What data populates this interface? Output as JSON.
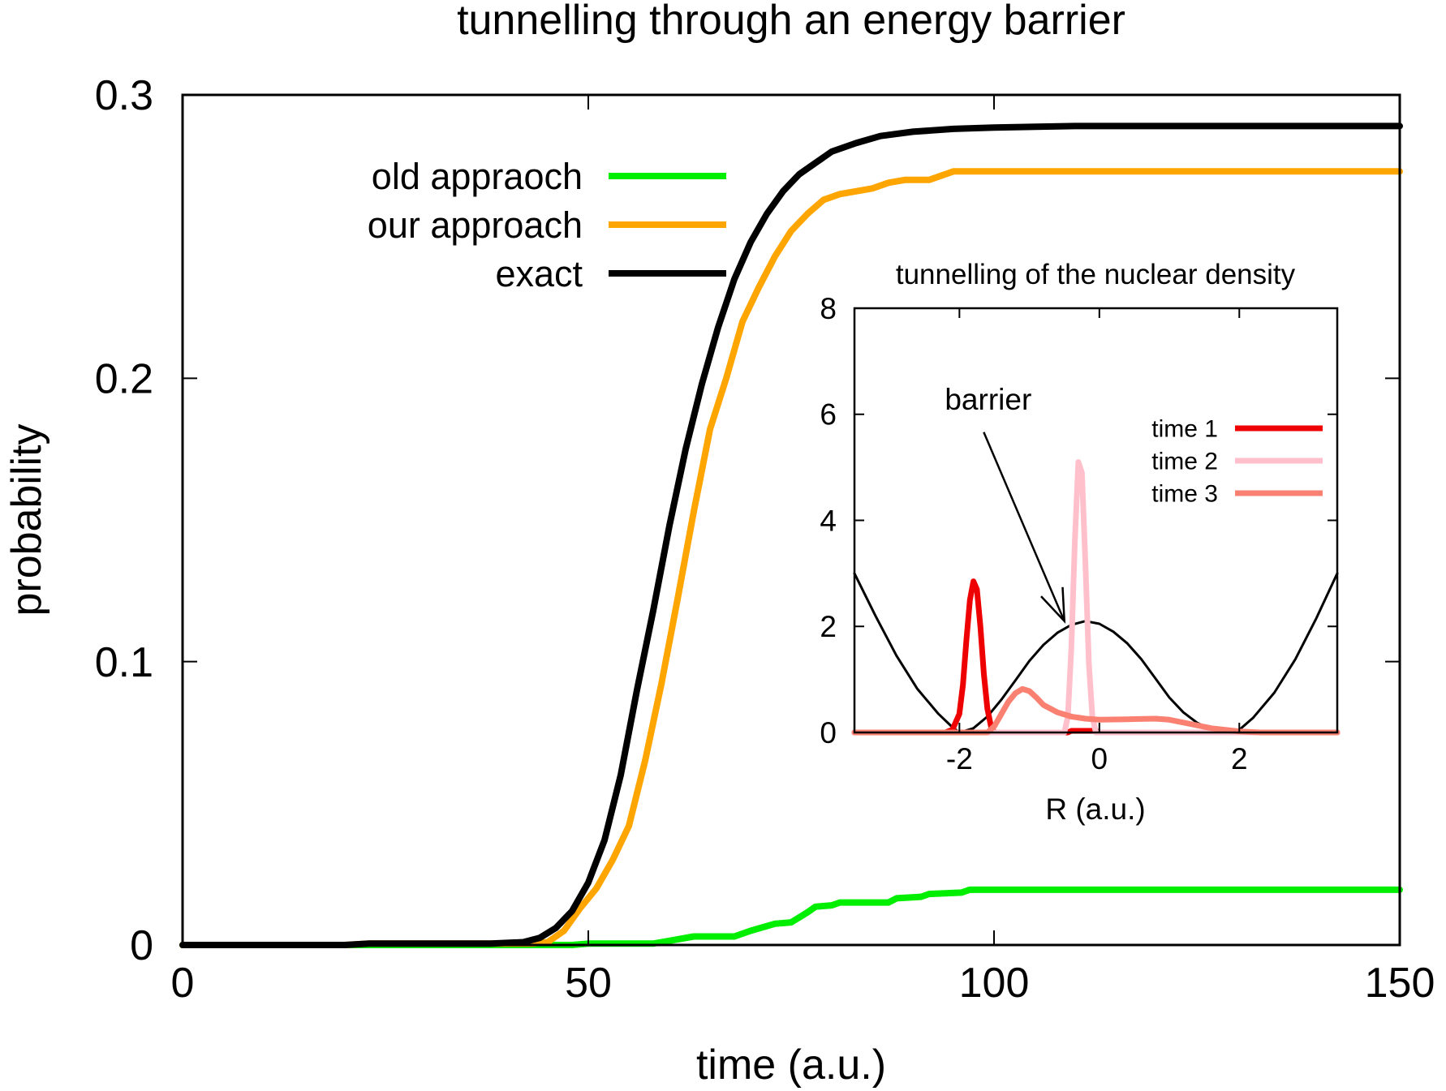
{
  "chart_data": [
    {
      "type": "line",
      "title": "tunnelling through an energy barrier",
      "xlabel": "time (a.u.)",
      "ylabel": "probability",
      "xlim": [
        0,
        150
      ],
      "ylim": [
        0,
        0.3
      ],
      "xticks": [
        {
          "value": 0,
          "label": "0"
        },
        {
          "value": 50,
          "label": "50"
        },
        {
          "value": 100,
          "label": "100"
        },
        {
          "value": 150,
          "label": "150"
        }
      ],
      "yticks": [
        {
          "value": 0,
          "label": "0"
        },
        {
          "value": 0.1,
          "label": "0.1"
        },
        {
          "value": 0.2,
          "label": "0.2"
        },
        {
          "value": 0.3,
          "label": "0.3"
        }
      ],
      "grid": false,
      "legend": "top-left",
      "series": [
        {
          "name": "old appraoch",
          "color": "#00ee00",
          "points": [
            [
              0,
              0
            ],
            [
              48,
              0
            ],
            [
              50,
              0.0005
            ],
            [
              58,
              0.0005
            ],
            [
              60,
              0.0015
            ],
            [
              63,
              0.003
            ],
            [
              68,
              0.003
            ],
            [
              70,
              0.005
            ],
            [
              73,
              0.0075
            ],
            [
              75,
              0.008
            ],
            [
              77,
              0.0115
            ],
            [
              78,
              0.0135
            ],
            [
              80,
              0.014
            ],
            [
              81,
              0.015
            ],
            [
              87,
              0.015
            ],
            [
              88,
              0.0165
            ],
            [
              91,
              0.017
            ],
            [
              92,
              0.018
            ],
            [
              96,
              0.0185
            ],
            [
              97,
              0.0195
            ],
            [
              150,
              0.0195
            ]
          ]
        },
        {
          "name": "our approach",
          "color": "#ffa500",
          "points": [
            [
              0,
              0
            ],
            [
              20,
              0
            ],
            [
              23,
              0.0005
            ],
            [
              43,
              0.0005
            ],
            [
              45,
              0.001
            ],
            [
              47,
              0.005
            ],
            [
              49,
              0.013
            ],
            [
              51,
              0.02
            ],
            [
              53,
              0.03
            ],
            [
              55,
              0.042
            ],
            [
              57,
              0.065
            ],
            [
              59,
              0.092
            ],
            [
              61,
              0.122
            ],
            [
              63,
              0.153
            ],
            [
              65,
              0.182
            ],
            [
              67,
              0.2
            ],
            [
              69,
              0.22
            ],
            [
              71,
              0.232
            ],
            [
              73,
              0.243
            ],
            [
              75,
              0.252
            ],
            [
              77,
              0.258
            ],
            [
              79,
              0.263
            ],
            [
              81,
              0.265
            ],
            [
              83,
              0.266
            ],
            [
              85,
              0.267
            ],
            [
              87,
              0.269
            ],
            [
              89,
              0.27
            ],
            [
              92,
              0.27
            ],
            [
              95,
              0.273
            ],
            [
              150,
              0.273
            ]
          ]
        },
        {
          "name": "exact",
          "color": "#000000",
          "points": [
            [
              0,
              0
            ],
            [
              20,
              0
            ],
            [
              23,
              0.0005
            ],
            [
              38,
              0.0005
            ],
            [
              42,
              0.001
            ],
            [
              44,
              0.0025
            ],
            [
              46,
              0.006
            ],
            [
              48,
              0.012
            ],
            [
              50,
              0.022
            ],
            [
              52,
              0.037
            ],
            [
              54,
              0.06
            ],
            [
              56,
              0.09
            ],
            [
              58,
              0.118
            ],
            [
              60,
              0.148
            ],
            [
              62,
              0.175
            ],
            [
              64,
              0.198
            ],
            [
              66,
              0.218
            ],
            [
              68,
              0.235
            ],
            [
              70,
              0.248
            ],
            [
              72,
              0.258
            ],
            [
              74,
              0.266
            ],
            [
              76,
              0.272
            ],
            [
              78,
              0.276
            ],
            [
              80,
              0.28
            ],
            [
              83,
              0.283
            ],
            [
              86,
              0.2855
            ],
            [
              90,
              0.287
            ],
            [
              95,
              0.288
            ],
            [
              100,
              0.2885
            ],
            [
              110,
              0.289
            ],
            [
              150,
              0.289
            ]
          ]
        }
      ]
    },
    {
      "type": "line",
      "title": "tunnelling of the nuclear density",
      "xlabel": "R (a.u.)",
      "ylabel": "",
      "xlim": [
        -3.5,
        3.4
      ],
      "ylim": [
        0,
        8
      ],
      "xticks": [
        {
          "value": -2,
          "label": "-2"
        },
        {
          "value": 0,
          "label": "0"
        },
        {
          "value": 2,
          "label": "2"
        }
      ],
      "yticks": [
        {
          "value": 0,
          "label": "0"
        },
        {
          "value": 2,
          "label": "2"
        },
        {
          "value": 4,
          "label": "4"
        },
        {
          "value": 6,
          "label": "6"
        },
        {
          "value": 8,
          "label": "8"
        }
      ],
      "legend": "top-right",
      "annotation": {
        "text": "barrier",
        "arrow_from": [
          -2.0,
          6.0
        ],
        "arrow_to": [
          -0.5,
          2.1
        ]
      },
      "series": [
        {
          "name": "",
          "color": "#000000",
          "role": "barrier",
          "points": [
            [
              -3.5,
              3.0
            ],
            [
              -3.2,
              2.2
            ],
            [
              -2.9,
              1.45
            ],
            [
              -2.6,
              0.82
            ],
            [
              -2.3,
              0.35
            ],
            [
              -2.1,
              0.1
            ],
            [
              -2.0,
              0.0
            ],
            [
              -1.8,
              0.08
            ],
            [
              -1.6,
              0.3
            ],
            [
              -1.4,
              0.62
            ],
            [
              -1.2,
              0.98
            ],
            [
              -1.0,
              1.35
            ],
            [
              -0.8,
              1.65
            ],
            [
              -0.6,
              1.88
            ],
            [
              -0.4,
              2.03
            ],
            [
              -0.2,
              2.1
            ],
            [
              0.0,
              2.05
            ],
            [
              0.2,
              1.9
            ],
            [
              0.4,
              1.68
            ],
            [
              0.6,
              1.38
            ],
            [
              0.8,
              1.02
            ],
            [
              1.0,
              0.66
            ],
            [
              1.2,
              0.38
            ],
            [
              1.4,
              0.18
            ],
            [
              1.6,
              0.06
            ],
            [
              1.8,
              0.0
            ],
            [
              2.0,
              0.05
            ],
            [
              2.2,
              0.28
            ],
            [
              2.5,
              0.75
            ],
            [
              2.8,
              1.38
            ],
            [
              3.1,
              2.15
            ],
            [
              3.4,
              3.0
            ]
          ]
        },
        {
          "name": "time 1",
          "color": "#ee0000",
          "points": [
            [
              -3.5,
              0
            ],
            [
              -2.2,
              0
            ],
            [
              -2.1,
              0.05
            ],
            [
              -2.0,
              0.35
            ],
            [
              -1.95,
              0.9
            ],
            [
              -1.9,
              1.75
            ],
            [
              -1.85,
              2.5
            ],
            [
              -1.8,
              2.85
            ],
            [
              -1.75,
              2.7
            ],
            [
              -1.7,
              2.0
            ],
            [
              -1.65,
              1.1
            ],
            [
              -1.6,
              0.45
            ],
            [
              -1.55,
              0.12
            ],
            [
              -1.5,
              0.0
            ],
            [
              -0.45,
              0
            ],
            [
              -0.4,
              0.03
            ],
            [
              -0.05,
              0.03
            ],
            [
              0.0,
              0
            ],
            [
              3.4,
              0
            ]
          ]
        },
        {
          "name": "time 2",
          "color": "#ffc0cb",
          "points": [
            [
              -3.5,
              0
            ],
            [
              -0.5,
              0
            ],
            [
              -0.45,
              0.3
            ],
            [
              -0.4,
              1.6
            ],
            [
              -0.35,
              3.6
            ],
            [
              -0.3,
              5.1
            ],
            [
              -0.25,
              4.9
            ],
            [
              -0.2,
              3.2
            ],
            [
              -0.15,
              1.3
            ],
            [
              -0.1,
              0.3
            ],
            [
              -0.05,
              0
            ],
            [
              3.4,
              0
            ]
          ]
        },
        {
          "name": "time 3",
          "color": "#fa8072",
          "points": [
            [
              -3.5,
              0
            ],
            [
              -1.6,
              0
            ],
            [
              -1.5,
              0.12
            ],
            [
              -1.4,
              0.35
            ],
            [
              -1.3,
              0.58
            ],
            [
              -1.2,
              0.74
            ],
            [
              -1.1,
              0.82
            ],
            [
              -1.0,
              0.78
            ],
            [
              -0.9,
              0.66
            ],
            [
              -0.8,
              0.52
            ],
            [
              -0.6,
              0.38
            ],
            [
              -0.4,
              0.3
            ],
            [
              -0.2,
              0.26
            ],
            [
              0.0,
              0.24
            ],
            [
              0.4,
              0.25
            ],
            [
              0.8,
              0.26
            ],
            [
              1.0,
              0.24
            ],
            [
              1.3,
              0.16
            ],
            [
              1.6,
              0.08
            ],
            [
              2.0,
              0.02
            ],
            [
              2.3,
              0
            ],
            [
              3.4,
              0
            ]
          ]
        }
      ]
    }
  ]
}
